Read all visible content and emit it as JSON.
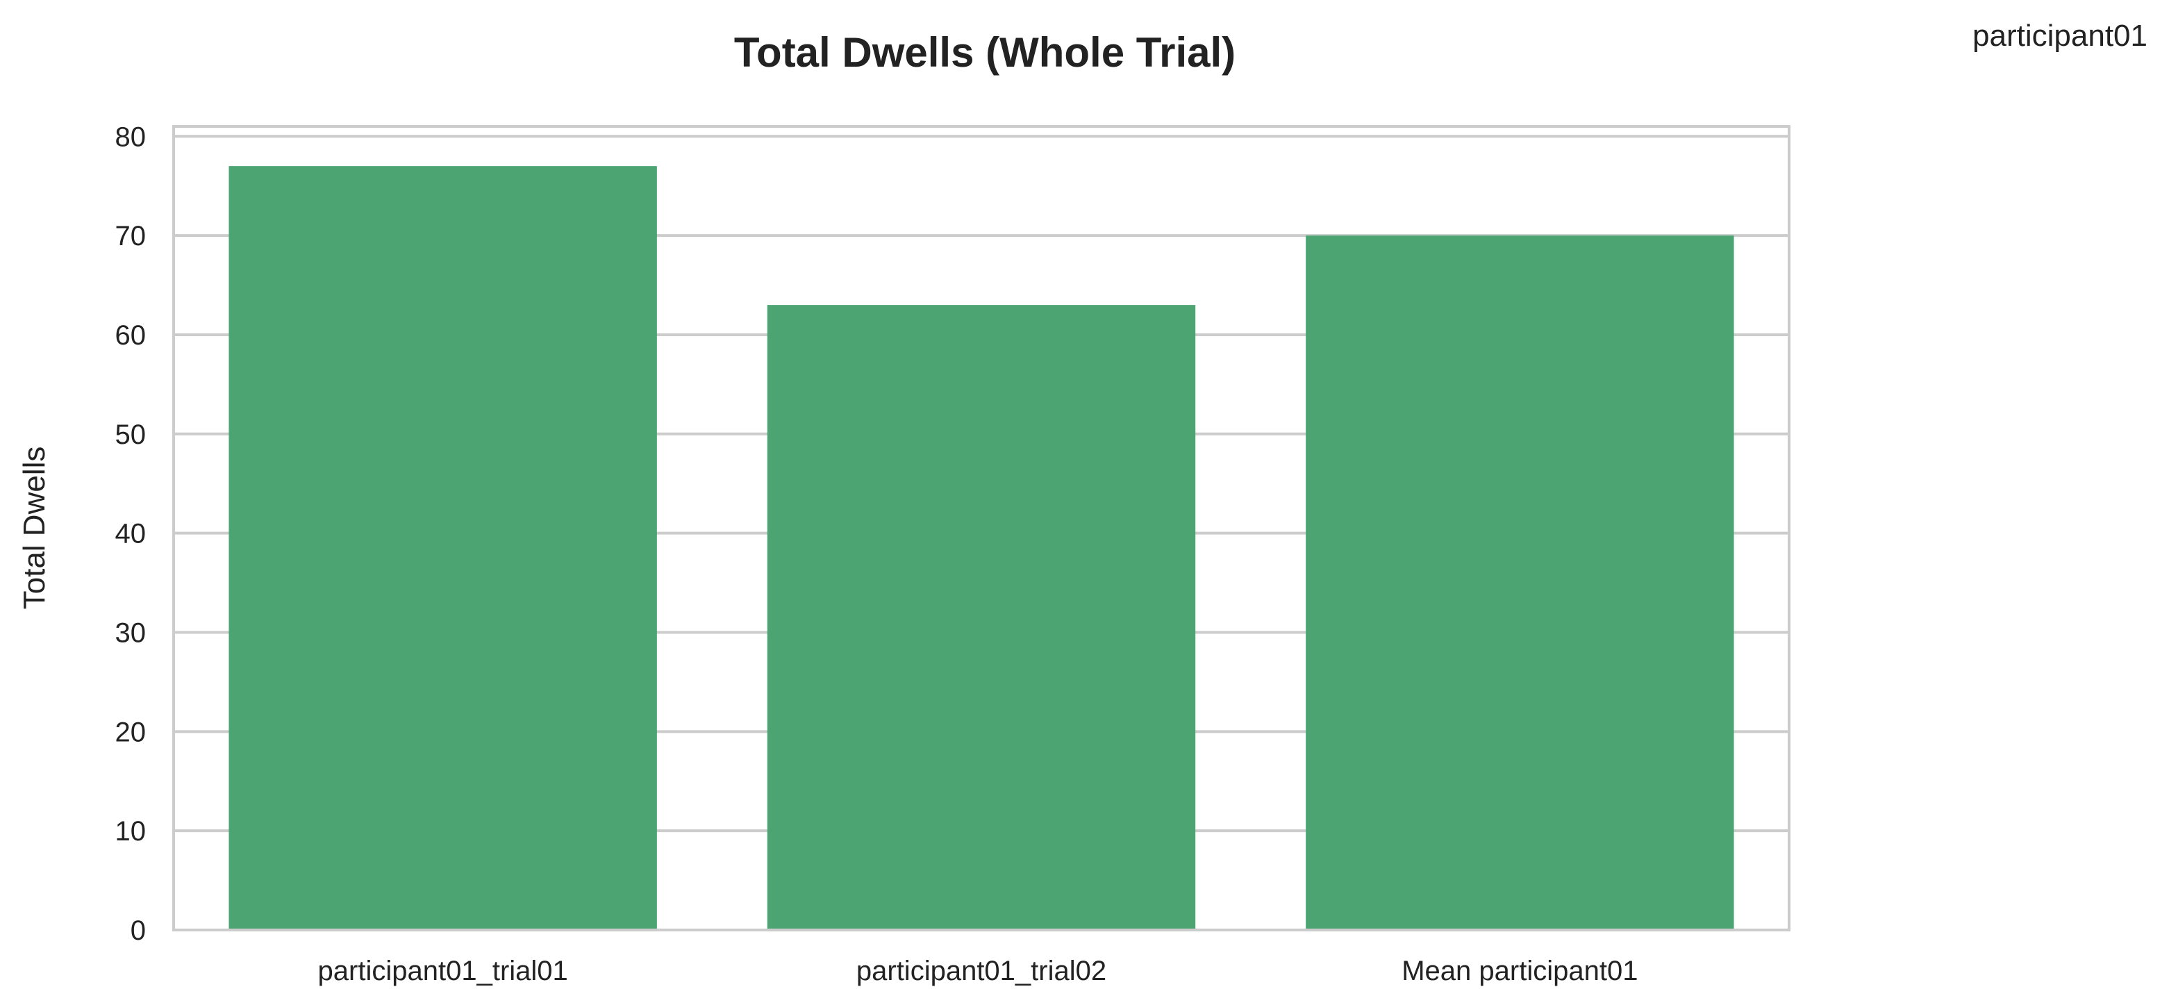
{
  "corner_label": "participant01",
  "chart_data": {
    "type": "bar",
    "title": "Total Dwells (Whole Trial)",
    "xlabel": "",
    "ylabel": "Total Dwells",
    "categories": [
      "participant01_trial01",
      "participant01_trial02",
      "Mean participant01"
    ],
    "values": [
      77,
      63,
      70
    ],
    "ylim": [
      0,
      81
    ],
    "yticks": [
      0,
      10,
      20,
      30,
      40,
      50,
      60,
      70,
      80
    ],
    "grid": "horizontal",
    "bar_color": "#4ca473",
    "grid_color": "#cccccc",
    "frame_color": "#cccccc"
  }
}
